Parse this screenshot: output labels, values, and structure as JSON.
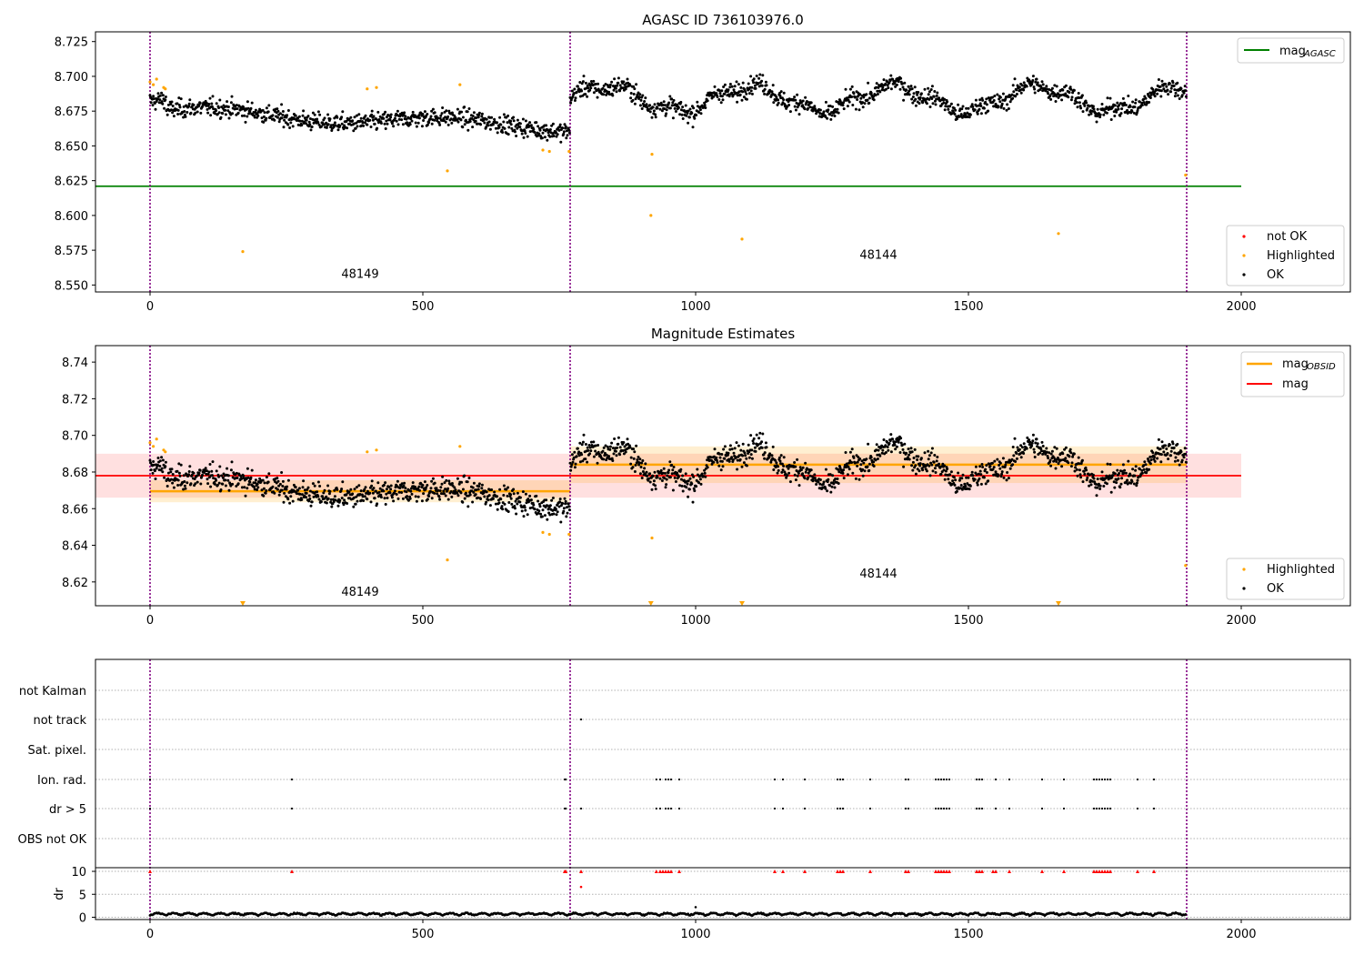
{
  "chart_data": [
    {
      "type": "scatter",
      "title": "AGASC ID 736103976.0",
      "xlim": [
        -100,
        2200
      ],
      "ylim": [
        8.545,
        8.732
      ],
      "xticks": [
        0,
        500,
        1000,
        1500,
        2000
      ],
      "yticks": [
        8.55,
        8.575,
        8.6,
        8.625,
        8.65,
        8.675,
        8.7,
        8.725
      ],
      "ytick_labels": [
        "8.550",
        "8.575",
        "8.600",
        "8.625",
        "8.650",
        "8.675",
        "8.700",
        "8.725"
      ],
      "grid": false,
      "vlines": [
        0,
        770,
        1900
      ],
      "obsid_labels": [
        {
          "text": "48149",
          "x": 385,
          "y": 8.555
        },
        {
          "text": "48144",
          "x": 1335,
          "y": 8.569
        }
      ],
      "lines": [
        {
          "name": "mag_AGASC",
          "label_main": "mag",
          "label_sub": "AGASC",
          "x": [
            -100,
            2000
          ],
          "y": [
            8.621,
            8.621
          ],
          "color": "#008000"
        }
      ],
      "legends": {
        "upper": [
          {
            "label_main": "mag",
            "label_sub": "AGASC",
            "kind": "line",
            "color": "#008000"
          }
        ],
        "lower": [
          {
            "label": "not OK",
            "kind": "dot",
            "color": "#ff0000"
          },
          {
            "label": "Highlighted",
            "kind": "dot",
            "color": "#ffa500"
          },
          {
            "label": "OK",
            "kind": "dot",
            "color": "#000000"
          }
        ],
        "upper_position": "upper right",
        "lower_position": "lower right"
      },
      "series": [
        {
          "name": "OK",
          "color": "#000000",
          "description": "~1900 magnitude samples; mean ~8.669 for index 0-770 and ~8.684 for 770-1900 with slow oscillation"
        },
        {
          "name": "Highlighted",
          "color": "#ffa500",
          "x": [
            0,
            6,
            12,
            25,
            28,
            170,
            398,
            415,
            545,
            568,
            720,
            732,
            768,
            918,
            920,
            1085,
            1665,
            1898
          ],
          "y": [
            8.696,
            8.694,
            8.698,
            8.692,
            8.691,
            8.574,
            8.691,
            8.692,
            8.632,
            8.694,
            8.647,
            8.646,
            8.646,
            8.6,
            8.644,
            8.583,
            8.587,
            8.629
          ]
        }
      ]
    },
    {
      "type": "scatter",
      "title": "Magnitude Estimates",
      "xlim": [
        -100,
        2200
      ],
      "ylim": [
        8.607,
        8.749
      ],
      "xticks": [
        0,
        500,
        1000,
        1500,
        2000
      ],
      "yticks": [
        8.62,
        8.64,
        8.66,
        8.68,
        8.7,
        8.72,
        8.74
      ],
      "ytick_labels": [
        "8.62",
        "8.64",
        "8.66",
        "8.68",
        "8.70",
        "8.72",
        "8.74"
      ],
      "grid": false,
      "vlines": [
        0,
        770,
        1900
      ],
      "obsid_labels": [
        {
          "text": "48149",
          "x": 385,
          "y": 8.6125
        },
        {
          "text": "48144",
          "x": 1335,
          "y": 8.6225
        }
      ],
      "mag": {
        "value": 8.678,
        "low": 8.666,
        "high": 8.69,
        "x_range": [
          -100,
          2000
        ],
        "color": "#ff0000",
        "band_color": "rgba(255,0,0,0.12)"
      },
      "mag_obsid": [
        {
          "x_range": [
            0,
            770
          ],
          "value": 8.6695,
          "low": 8.6635,
          "high": 8.6755
        },
        {
          "x_range": [
            770,
            1900
          ],
          "value": 8.684,
          "low": 8.674,
          "high": 8.694
        }
      ],
      "mag_obsid_color": "#ffa500",
      "offscale_markers_x": [
        170,
        918,
        1085,
        1665
      ],
      "legends": {
        "upper": [
          {
            "label_main": "mag",
            "label_sub": "OBSID",
            "kind": "line",
            "color": "#ffa500"
          },
          {
            "label_main": "mag",
            "label_sub": "",
            "kind": "line",
            "color": "#ff0000"
          }
        ],
        "lower": [
          {
            "label": "Highlighted",
            "kind": "dot",
            "color": "#ffa500"
          },
          {
            "label": "OK",
            "kind": "dot",
            "color": "#000000"
          }
        ],
        "upper_position": "upper right",
        "lower_position": "lower right"
      },
      "series": [
        {
          "name": "OK",
          "color": "#000000",
          "description": "same magnitude samples as upper panel"
        },
        {
          "name": "Highlighted",
          "color": "#ffa500",
          "description": "same highlighted points as upper panel"
        }
      ]
    },
    {
      "type": "scatter",
      "title": "",
      "xlim": [
        -100,
        2200
      ],
      "xticks": [
        0,
        500,
        1000,
        1500,
        2000
      ],
      "vlines": [
        0,
        770,
        1900
      ],
      "flag_rows": [
        "not Kalman",
        "not track",
        "Sat. pixel.",
        "Ion. rad.",
        "dr > 5",
        "OBS not OK"
      ],
      "flags": {
        "not Kalman": [],
        "not track": [
          790
        ],
        "Sat. pixel.": [],
        "Ion. rad.": [
          0,
          260,
          760,
          762,
          928,
          935,
          945,
          950,
          955,
          970,
          1145,
          1160,
          1200,
          1260,
          1265,
          1270,
          1320,
          1385,
          1390,
          1440,
          1445,
          1450,
          1455,
          1460,
          1465,
          1515,
          1520,
          1525,
          1550,
          1575,
          1635,
          1675,
          1730,
          1735,
          1740,
          1745,
          1750,
          1755,
          1760,
          1810,
          1840
        ],
        "dr > 5": [
          0,
          260,
          760,
          762,
          790,
          928,
          935,
          945,
          950,
          955,
          970,
          1145,
          1160,
          1200,
          1260,
          1265,
          1270,
          1320,
          1385,
          1390,
          1440,
          1445,
          1450,
          1455,
          1460,
          1465,
          1515,
          1520,
          1525,
          1550,
          1575,
          1635,
          1675,
          1730,
          1735,
          1740,
          1745,
          1750,
          1755,
          1760,
          1810,
          1840
        ],
        "OBS not OK": []
      },
      "dr_panel": {
        "ylabel": "dr",
        "ylim": [
          -0.5,
          10.8
        ],
        "yticks": [
          0,
          5,
          10
        ],
        "clipped_red_x": [
          0,
          260,
          760,
          762,
          790,
          928,
          935,
          940,
          945,
          950,
          955,
          970,
          1145,
          1160,
          1200,
          1260,
          1265,
          1270,
          1320,
          1385,
          1390,
          1440,
          1445,
          1450,
          1455,
          1460,
          1465,
          1515,
          1520,
          1525,
          1545,
          1550,
          1575,
          1635,
          1675,
          1730,
          1735,
          1740,
          1745,
          1750,
          1755,
          1760,
          1810,
          1840
        ],
        "red_points": [
          {
            "x": 790,
            "y": 6.6
          }
        ],
        "baseline_description": "black points ~0.3-1.3 across all samples, one at (1000, 2.2)"
      }
    }
  ]
}
